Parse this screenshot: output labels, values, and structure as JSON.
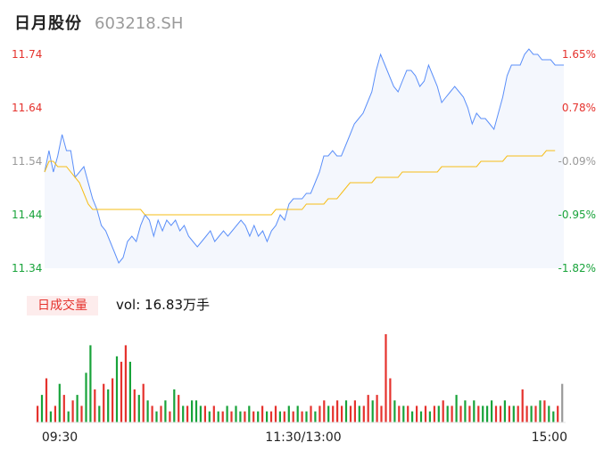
{
  "header": {
    "name": "日月股份",
    "code": "603218.SH"
  },
  "volume": {
    "badge": "日成交量",
    "text": "vol: 16.83万手"
  },
  "colors": {
    "price_line": "#5b8ff9",
    "avg_line": "#f6bd16",
    "up": "#e5322d",
    "down": "#18a33a",
    "flat": "#9a9a9a",
    "area_fill": "#f4f7fd"
  },
  "chart_data": [
    {
      "type": "line",
      "ylim": [
        11.34,
        11.74
      ],
      "y_ticks_left": [
        "11.74",
        "11.64",
        "11.54",
        "11.44",
        "11.34"
      ],
      "y_ticks_right": [
        "1.65%",
        "0.78%",
        "-0.09%",
        "-0.95%",
        "-1.82%"
      ],
      "x_ticks": [
        "09:30",
        "11:30/13:00",
        "15:00"
      ],
      "series": [
        {
          "values": [
            11.52,
            11.56,
            11.52,
            11.55,
            11.59,
            11.56,
            11.56,
            11.51,
            11.52,
            11.53,
            11.5,
            11.47,
            11.45,
            11.42,
            11.41,
            11.39,
            11.37,
            11.35,
            11.36,
            11.39,
            11.4,
            11.39,
            11.42,
            11.44,
            11.43,
            11.4,
            11.43,
            11.41,
            11.43,
            11.42,
            11.43,
            11.41,
            11.42,
            11.4,
            11.39,
            11.38,
            11.39,
            11.4,
            11.41,
            11.39,
            11.4,
            11.41,
            11.4,
            11.41,
            11.42,
            11.43,
            11.42,
            11.4,
            11.42,
            11.4,
            11.41,
            11.39,
            11.41,
            11.42,
            11.44,
            11.43,
            11.46,
            11.47,
            11.47,
            11.47,
            11.48,
            11.48,
            11.5,
            11.52,
            11.55,
            11.55,
            11.56,
            11.55,
            11.55,
            11.57,
            11.59,
            11.61,
            11.62,
            11.63,
            11.65,
            11.67,
            11.71,
            11.74,
            11.72,
            11.7,
            11.68,
            11.67,
            11.69,
            11.71,
            11.71,
            11.7,
            11.68,
            11.69,
            11.72,
            11.7,
            11.68,
            11.65,
            11.66,
            11.67,
            11.68,
            11.67,
            11.66,
            11.64,
            11.61,
            11.63,
            11.62,
            11.62,
            11.61,
            11.6,
            11.63,
            11.66,
            11.7,
            11.72,
            11.72,
            11.72,
            11.74,
            11.75,
            11.74,
            11.74,
            11.73,
            11.73,
            11.73,
            11.72,
            11.72,
            11.72
          ],
          "color": "#5b8ff9"
        },
        {
          "values": [
            11.52,
            11.54,
            11.54,
            11.53,
            11.53,
            11.53,
            11.52,
            11.51,
            11.5,
            11.48,
            11.46,
            11.45,
            11.45,
            11.45,
            11.45,
            11.45,
            11.45,
            11.45,
            11.45,
            11.45,
            11.45,
            11.45,
            11.45,
            11.44,
            11.44,
            11.44,
            11.44,
            11.44,
            11.44,
            11.44,
            11.44,
            11.44,
            11.44,
            11.44,
            11.44,
            11.44,
            11.44,
            11.44,
            11.44,
            11.44,
            11.44,
            11.44,
            11.44,
            11.44,
            11.44,
            11.44,
            11.44,
            11.44,
            11.44,
            11.44,
            11.44,
            11.44,
            11.44,
            11.45,
            11.45,
            11.45,
            11.45,
            11.45,
            11.45,
            11.45,
            11.46,
            11.46,
            11.46,
            11.46,
            11.46,
            11.47,
            11.47,
            11.47,
            11.48,
            11.49,
            11.5,
            11.5,
            11.5,
            11.5,
            11.5,
            11.5,
            11.51,
            11.51,
            11.51,
            11.51,
            11.51,
            11.51,
            11.52,
            11.52,
            11.52,
            11.52,
            11.52,
            11.52,
            11.52,
            11.52,
            11.52,
            11.53,
            11.53,
            11.53,
            11.53,
            11.53,
            11.53,
            11.53,
            11.53,
            11.53,
            11.54,
            11.54,
            11.54,
            11.54,
            11.54,
            11.54,
            11.55,
            11.55,
            11.55,
            11.55,
            11.55,
            11.55,
            11.55,
            11.55,
            11.55,
            11.56,
            11.56,
            11.56
          ],
          "color": "#f6bd16"
        }
      ]
    },
    {
      "type": "bar",
      "values": [
        3,
        5,
        8,
        2,
        3,
        7,
        5,
        2,
        4,
        5,
        3,
        9,
        14,
        6,
        3,
        7,
        6,
        8,
        12,
        11,
        14,
        11,
        6,
        5,
        7,
        4,
        3,
        2,
        3,
        4,
        2,
        6,
        5,
        3,
        3,
        4,
        4,
        3,
        3,
        2,
        3,
        2,
        2,
        3,
        2,
        3,
        2,
        2,
        3,
        2,
        2,
        3,
        2,
        2,
        3,
        2,
        2,
        3,
        2,
        3,
        2,
        2,
        3,
        2,
        3,
        4,
        3,
        3,
        4,
        3,
        4,
        3,
        4,
        3,
        3,
        5,
        4,
        5,
        3,
        16,
        8,
        4,
        3,
        3,
        3,
        2,
        3,
        2,
        3,
        2,
        3,
        3,
        4,
        3,
        3,
        5,
        3,
        4,
        3,
        4,
        3,
        3,
        3,
        4,
        3,
        3,
        4,
        3,
        3,
        3,
        6,
        3,
        3,
        3,
        4,
        4,
        3,
        2,
        3,
        7
      ],
      "colors": [
        "up",
        "down",
        "up",
        "down",
        "up",
        "down",
        "up",
        "down",
        "up",
        "down",
        "up",
        "down",
        "down",
        "up",
        "down",
        "up",
        "down",
        "up",
        "down",
        "up",
        "up",
        "down",
        "up",
        "down",
        "up",
        "down",
        "up",
        "down",
        "up",
        "down",
        "up",
        "down",
        "up",
        "down",
        "up",
        "down",
        "down",
        "down",
        "up",
        "down",
        "up",
        "down",
        "up",
        "down",
        "up",
        "down",
        "down",
        "up",
        "down",
        "up",
        "down",
        "up",
        "down",
        "up",
        "up",
        "down",
        "up",
        "down",
        "up",
        "down",
        "up",
        "down",
        "up",
        "down",
        "up",
        "up",
        "down",
        "up",
        "up",
        "up",
        "down",
        "up",
        "up",
        "down",
        "up",
        "up",
        "down",
        "up",
        "up",
        "up",
        "up",
        "down",
        "up",
        "down",
        "up",
        "down",
        "up",
        "down",
        "up",
        "down",
        "up",
        "down",
        "up",
        "down",
        "up",
        "down",
        "up",
        "down",
        "up",
        "down",
        "up",
        "down",
        "down",
        "down",
        "up",
        "up",
        "down",
        "up",
        "down",
        "up",
        "up",
        "up",
        "down",
        "up",
        "down",
        "up",
        "down",
        "down",
        "up",
        "flat"
      ]
    }
  ]
}
